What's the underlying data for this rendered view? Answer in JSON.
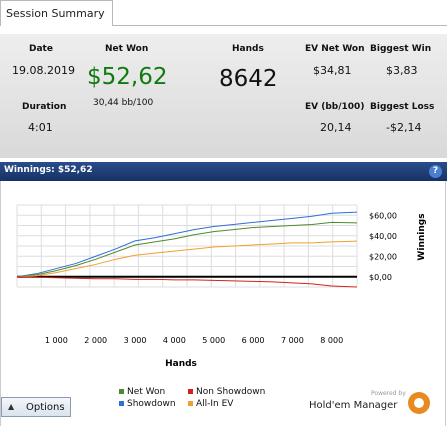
{
  "tab": {
    "label": "Session Summary"
  },
  "summary": {
    "date_label": "Date",
    "date_value": "19.08.2019",
    "netwon_label": "Net Won",
    "netwon_value": "$52,62",
    "hands_label": "Hands",
    "hands_value": "8642",
    "evnetwon_label": "EV Net Won",
    "evnetwon_value": "$34,81",
    "biggestwin_label": "Biggest Win",
    "biggestwin_value": "$3,83",
    "duration_label": "Duration",
    "duration_value": "4:01",
    "bb100_value": "30,44 bb/100",
    "evbb_label": "EV (bb/100)",
    "evbb_value": "20,14",
    "biggestloss_label": "Biggest Loss",
    "biggestloss_value": "-$2,14"
  },
  "winnings_bar": {
    "label": "Winnings: $52,62",
    "help_icon": "help-icon"
  },
  "chart_data": {
    "type": "line",
    "xlabel": "Hands",
    "ylabel": "Winnings",
    "xlim": [
      0,
      8642
    ],
    "ylim": [
      -10,
      70
    ],
    "x_ticks": [
      1000,
      2000,
      3000,
      4000,
      5000,
      6000,
      7000,
      8000
    ],
    "x_tick_labels": [
      "1 000",
      "2 000",
      "3 000",
      "4 000",
      "5 000",
      "6 000",
      "7 000",
      "8 000"
    ],
    "y_ticks": [
      0,
      20,
      40,
      60
    ],
    "y_tick_labels": [
      "$0,00",
      "$20,00",
      "$40,00",
      "$60,00"
    ],
    "x": [
      0,
      500,
      1000,
      1500,
      2000,
      2500,
      3000,
      3500,
      4000,
      4500,
      5000,
      5500,
      6000,
      6500,
      7000,
      7500,
      8000,
      8642
    ],
    "series": [
      {
        "name": "Showdown",
        "color": "#2f6fd6",
        "values": [
          0,
          3,
          8,
          13,
          20,
          27,
          35,
          38,
          42,
          46,
          49,
          51,
          53,
          55,
          57,
          59,
          62,
          63
        ]
      },
      {
        "name": "Net Won",
        "color": "#4e8a2c",
        "values": [
          0,
          2,
          6,
          11,
          17,
          24,
          31,
          34,
          37,
          41,
          44,
          46,
          48,
          49,
          50,
          51,
          53,
          52.62
        ]
      },
      {
        "name": "All-In EV",
        "color": "#f0a030",
        "values": [
          0,
          1,
          4,
          8,
          12,
          17,
          21,
          23,
          25,
          27,
          29,
          30,
          31,
          32,
          33,
          33,
          34,
          34.81
        ]
      },
      {
        "name": "Non Showdown",
        "color": "#d62020",
        "values": [
          0,
          -0.5,
          -1,
          -1.5,
          -2,
          -2,
          -2.5,
          -2.5,
          -3,
          -3,
          -3.5,
          -4,
          -4.5,
          -5,
          -6,
          -7,
          -9,
          -10
        ]
      }
    ],
    "zero_line": true,
    "grid": true,
    "legend_position": "bottom"
  },
  "legend": {
    "net_won": "Net Won",
    "non_showdown": "Non Showdown",
    "showdown": "Showdown",
    "all_in_ev": "All-In EV"
  },
  "options_button": {
    "label": "Options",
    "icon": "chevron-up-icon"
  },
  "brand": {
    "powered_by": "Powered by",
    "name": "Hold'em Manager"
  }
}
